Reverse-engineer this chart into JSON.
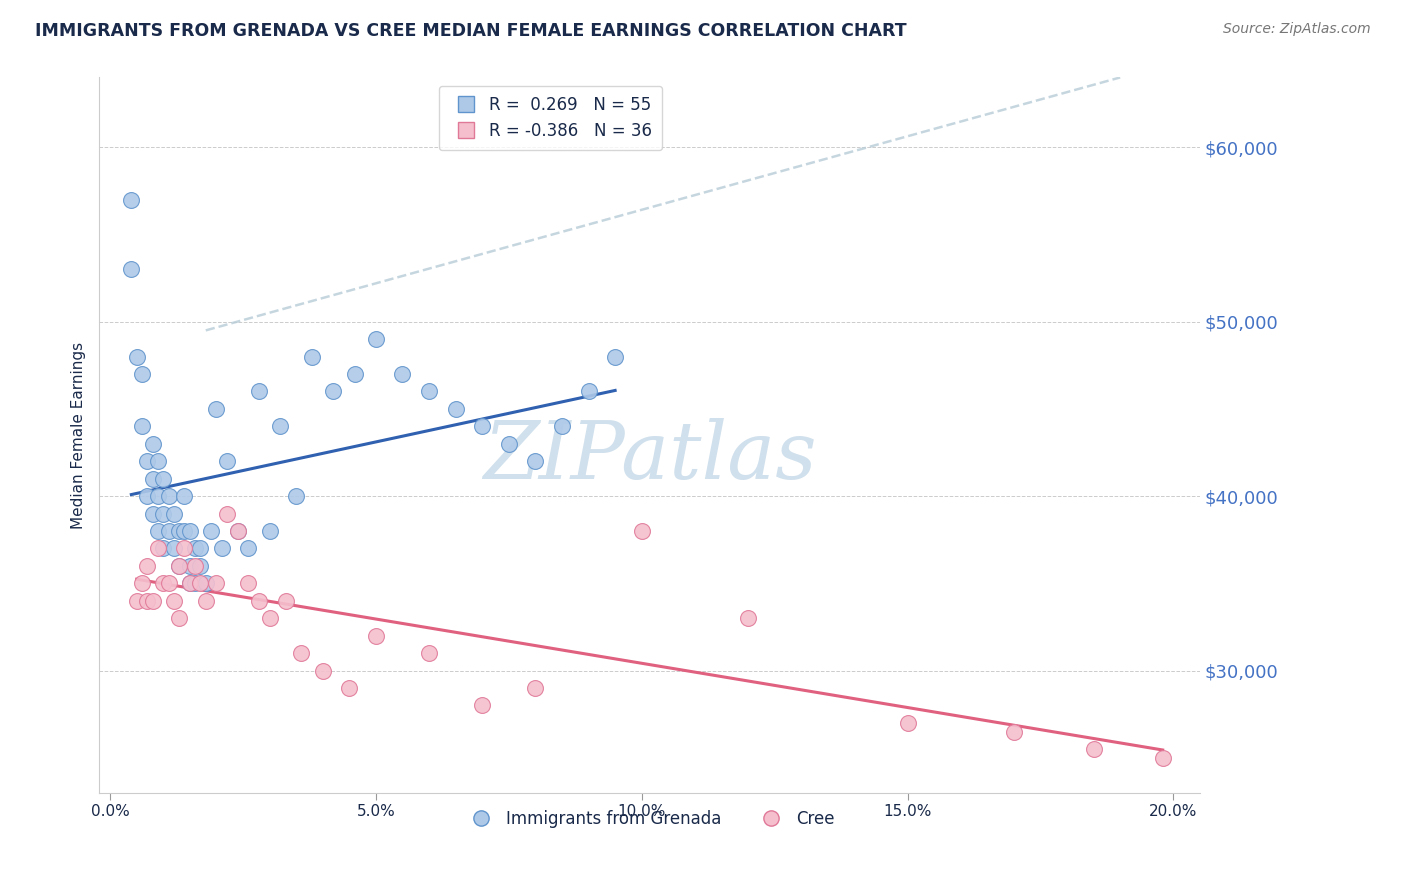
{
  "title": "IMMIGRANTS FROM GRENADA VS CREE MEDIAN FEMALE EARNINGS CORRELATION CHART",
  "source_text": "Source: ZipAtlas.com",
  "ylabel": "Median Female Earnings",
  "xlim": [
    -0.002,
    0.205
  ],
  "ylim": [
    23000,
    64000
  ],
  "yticks": [
    30000,
    40000,
    50000,
    60000
  ],
  "xticks": [
    0.0,
    0.05,
    0.1,
    0.15,
    0.2
  ],
  "xtick_labels": [
    "0.0%",
    "5.0%",
    "10.0%",
    "15.0%",
    "20.0%"
  ],
  "right_ytick_labels": [
    "$30,000",
    "$40,000",
    "$50,000",
    "$60,000"
  ],
  "R_blue": 0.269,
  "N_blue": 55,
  "R_pink": -0.386,
  "N_pink": 36,
  "blue_face": "#aec9e8",
  "blue_edge": "#6094cc",
  "pink_face": "#f5bfce",
  "pink_edge": "#e07898",
  "blue_line": "#3060b0",
  "pink_line": "#e06080",
  "dash_color": "#b8ccd8",
  "watermark_color": "#d0e0ec",
  "bg_color": "#ffffff",
  "grid_color": "#cccccc",
  "title_color": "#1a2a4a",
  "right_axis_color": "#4472c4",
  "blue_scatter_x": [
    0.004,
    0.004,
    0.005,
    0.006,
    0.006,
    0.007,
    0.007,
    0.008,
    0.008,
    0.008,
    0.009,
    0.009,
    0.009,
    0.01,
    0.01,
    0.01,
    0.011,
    0.011,
    0.012,
    0.012,
    0.013,
    0.013,
    0.014,
    0.014,
    0.015,
    0.015,
    0.015,
    0.016,
    0.016,
    0.017,
    0.017,
    0.018,
    0.019,
    0.02,
    0.021,
    0.022,
    0.024,
    0.026,
    0.028,
    0.03,
    0.032,
    0.035,
    0.038,
    0.042,
    0.046,
    0.05,
    0.055,
    0.06,
    0.065,
    0.07,
    0.075,
    0.08,
    0.085,
    0.09,
    0.095
  ],
  "blue_scatter_y": [
    57000,
    53000,
    48000,
    44000,
    47000,
    42000,
    40000,
    43000,
    41000,
    39000,
    42000,
    40000,
    38000,
    41000,
    39000,
    37000,
    40000,
    38000,
    39000,
    37000,
    38000,
    36000,
    40000,
    38000,
    38000,
    36000,
    35000,
    37000,
    35000,
    37000,
    36000,
    35000,
    38000,
    45000,
    37000,
    42000,
    38000,
    37000,
    46000,
    38000,
    44000,
    40000,
    48000,
    46000,
    47000,
    49000,
    47000,
    46000,
    45000,
    44000,
    43000,
    42000,
    44000,
    46000,
    48000
  ],
  "pink_scatter_x": [
    0.005,
    0.006,
    0.007,
    0.007,
    0.008,
    0.009,
    0.01,
    0.011,
    0.012,
    0.013,
    0.013,
    0.014,
    0.015,
    0.016,
    0.017,
    0.018,
    0.02,
    0.022,
    0.024,
    0.026,
    0.028,
    0.03,
    0.033,
    0.036,
    0.04,
    0.045,
    0.05,
    0.06,
    0.07,
    0.08,
    0.1,
    0.12,
    0.15,
    0.17,
    0.185,
    0.198
  ],
  "pink_scatter_y": [
    34000,
    35000,
    36000,
    34000,
    34000,
    37000,
    35000,
    35000,
    34000,
    36000,
    33000,
    37000,
    35000,
    36000,
    35000,
    34000,
    35000,
    39000,
    38000,
    35000,
    34000,
    33000,
    34000,
    31000,
    30000,
    29000,
    32000,
    31000,
    28000,
    29000,
    38000,
    33000,
    27000,
    26500,
    25500,
    25000
  ]
}
